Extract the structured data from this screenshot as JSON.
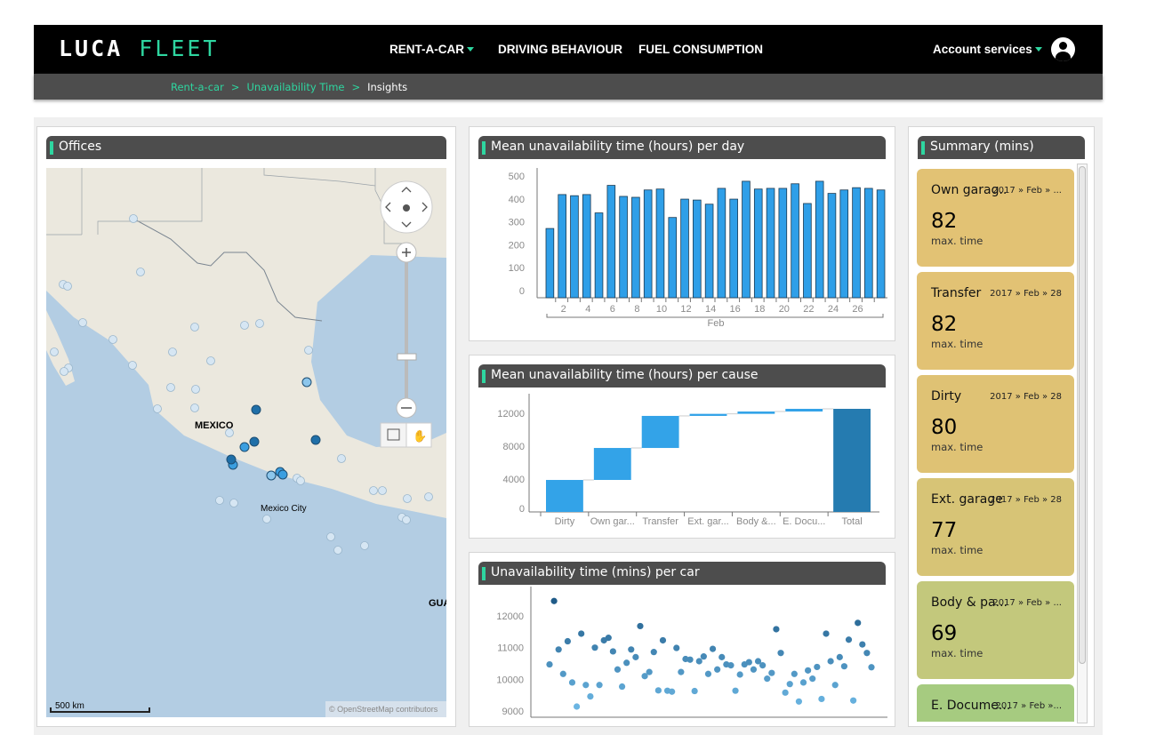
{
  "header": {
    "logo_a": "LUCA",
    "logo_b": "FLEET",
    "nav": [
      {
        "label": "RENT-A-CAR"
      },
      {
        "label": "DRIVING BEHAVIOUR"
      },
      {
        "label": "FUEL CONSUMPTION"
      }
    ],
    "account": "Account services"
  },
  "breadcrumb": [
    "Rent-a-car",
    "Unavailability Time",
    "Insights"
  ],
  "offices": {
    "title": "Offices",
    "country_label": "MEXICO",
    "city_label": "Mexico City",
    "partial_label": "GUA",
    "scale": "500 km",
    "attribution": "© OpenStreetMap contributors"
  },
  "chart_data": [
    {
      "type": "bar",
      "title": "Mean unavailability time (hours) per day",
      "xlabel": "Feb",
      "ylim": [
        0,
        500
      ],
      "yticks": [
        0,
        100,
        200,
        300,
        400,
        500
      ],
      "categories": [
        "1",
        "2",
        "3",
        "4",
        "5",
        "6",
        "7",
        "8",
        "9",
        "10",
        "11",
        "12",
        "13",
        "14",
        "15",
        "16",
        "17",
        "18",
        "19",
        "20",
        "21",
        "22",
        "23",
        "24",
        "25",
        "26",
        "27",
        "28"
      ],
      "xtick_labels": [
        "2",
        "4",
        "6",
        "8",
        "10",
        "12",
        "14",
        "16",
        "18",
        "20",
        "22",
        "24",
        "26"
      ],
      "values": [
        302,
        450,
        445,
        450,
        370,
        490,
        442,
        438,
        470,
        474,
        350,
        430,
        426,
        408,
        477,
        430,
        508,
        474,
        477,
        477,
        497,
        411,
        508,
        455,
        470,
        480,
        477,
        470
      ],
      "color": "#2f9fe8"
    },
    {
      "type": "bar",
      "subtype": "waterfall",
      "title": "Mean unavailability time (hours) per cause",
      "ylim": [
        0,
        12000
      ],
      "yticks": [
        0,
        4000,
        8000,
        12000
      ],
      "categories": [
        "Dirty",
        "Own gar...",
        "Transfer",
        "Ext. gar...",
        "Body &...",
        "E. Docu...",
        "Total"
      ],
      "values": [
        3890,
        3890,
        3900,
        250,
        285,
        325,
        12540
      ],
      "color": "#33a3e8",
      "total_color": "#257bb0"
    },
    {
      "type": "scatter",
      "title": "Unavailability time (mins) per car",
      "yticks": [
        9000,
        10000,
        11000,
        12000
      ],
      "ylim": [
        8900,
        12600
      ],
      "values": [
        10470,
        12470,
        10940,
        10170,
        11200,
        9900,
        9140,
        11440,
        9820,
        9460,
        11000,
        9820,
        11230,
        11310,
        10880,
        10310,
        9770,
        10520,
        10940,
        10700,
        11680,
        10100,
        10230,
        10860,
        9650,
        11230,
        9640,
        9610,
        10990,
        10230,
        10640,
        10620,
        9630,
        10570,
        10720,
        10170,
        10960,
        10310,
        10700,
        10470,
        10440,
        9640,
        10150,
        10470,
        10540,
        10310,
        10570,
        10440,
        10020,
        10200,
        11580,
        10830,
        9580,
        9850,
        10170,
        9300,
        9900,
        10280,
        10020,
        10390,
        9380,
        11440,
        10570,
        9820,
        10700,
        10410,
        11250,
        9330,
        11780,
        11100,
        10830,
        10380
      ]
    }
  ],
  "summary": {
    "title": "Summary (mins)",
    "cards": [
      {
        "name": "Own garag..",
        "date": "2017 » Feb » ...",
        "value": "82",
        "metric": "max. time",
        "color": "#e2c274"
      },
      {
        "name": "Transfer",
        "date": "2017 » Feb » 28",
        "value": "82",
        "metric": "max. time",
        "color": "#e2c274"
      },
      {
        "name": "Dirty",
        "date": "2017 » Feb » 28",
        "value": "80",
        "metric": "max. time",
        "color": "#dfc274"
      },
      {
        "name": "Ext. garage",
        "date": "2017 » Feb » 28",
        "value": "77",
        "metric": "max. time",
        "color": "#d7c476"
      },
      {
        "name": "Body & pa...",
        "date": "2017 » Feb » ...",
        "value": "69",
        "metric": "max. time",
        "color": "#c3c87c"
      },
      {
        "name": "E. Docume...",
        "date": "2017 » Feb »...",
        "value": "",
        "metric": "",
        "color": "#a6cb80"
      }
    ]
  }
}
